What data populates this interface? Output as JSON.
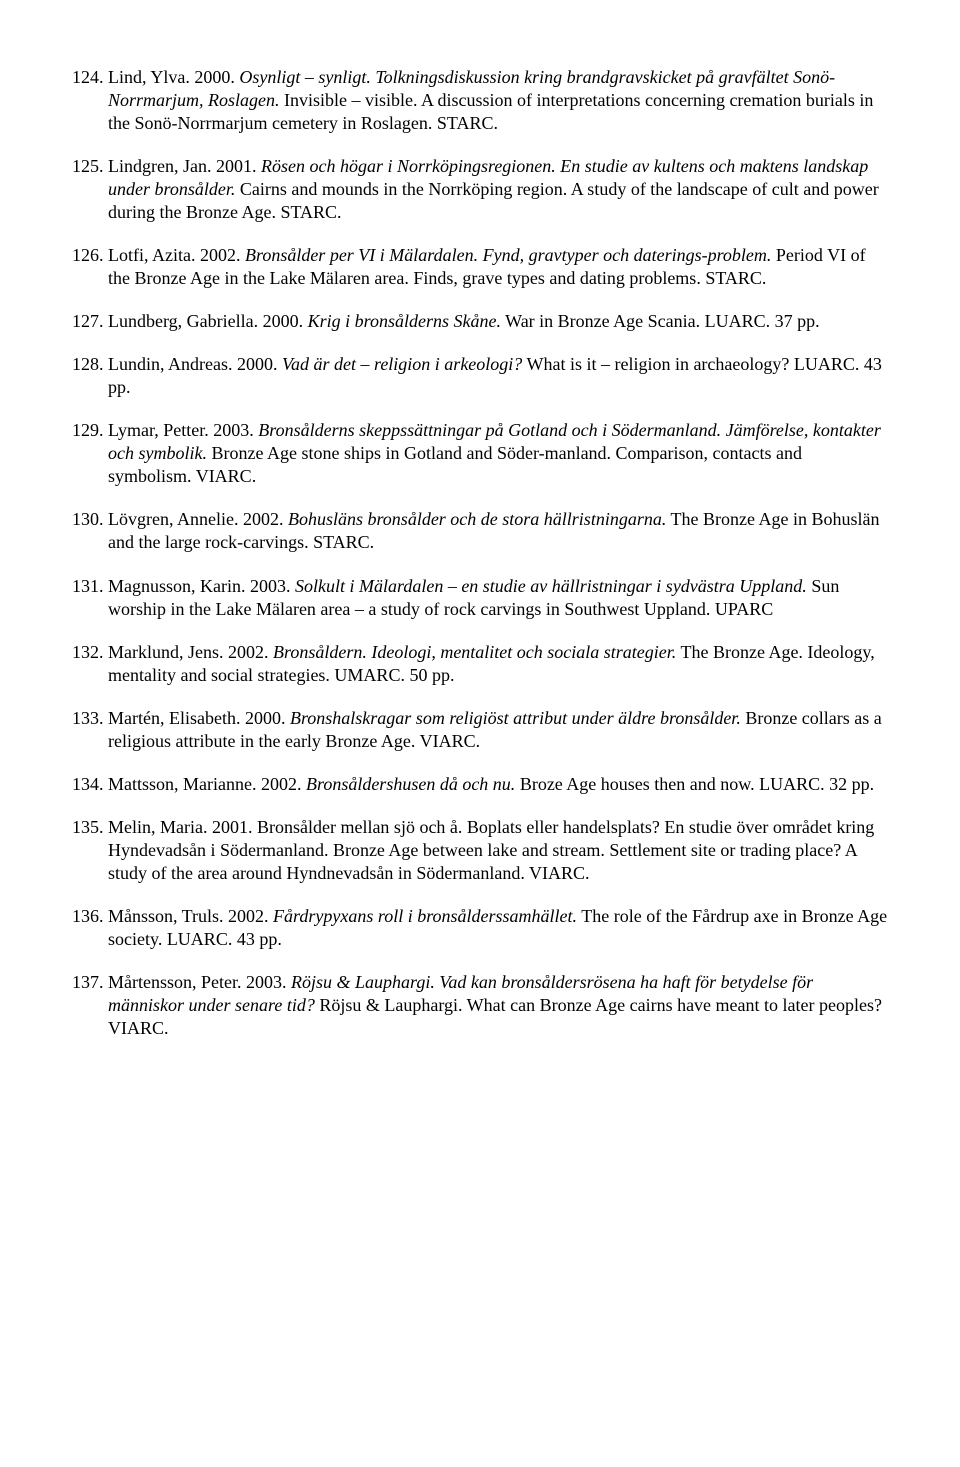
{
  "entries": [
    {
      "num": "124.",
      "segments": [
        {
          "t": " Lind, Ylva. 2000. ",
          "i": false
        },
        {
          "t": "Osynligt – synligt. Tolkningsdiskussion kring brandgravskicket på gravfältet Sonö-Norrmarjum, Roslagen.",
          "i": true
        },
        {
          "t": " Invisible – visible. A discussion of interpretations concerning cremation burials in the Sonö-Norrmarjum cemetery in Roslagen. STARC.",
          "i": false
        }
      ]
    },
    {
      "num": "125.",
      "segments": [
        {
          "t": " Lindgren, Jan. 2001. ",
          "i": false
        },
        {
          "t": "Rösen och högar i Norrköpingsregionen. En studie av kultens och maktens landskap under bronsålder.",
          "i": true
        },
        {
          "t": " Cairns and mounds in the Norrköping region. A study of the landscape of cult and power during the Bronze Age. STARC.",
          "i": false
        }
      ]
    },
    {
      "num": "126.",
      "segments": [
        {
          "t": " Lotfi, Azita. 2002. ",
          "i": false
        },
        {
          "t": "Bronsålder per VI i Mälardalen. Fynd, gravtyper och daterings-problem.",
          "i": true
        },
        {
          "t": " Period VI of the Bronze Age in the Lake Mälaren area. Finds, grave types and dating problems. STARC.",
          "i": false
        }
      ]
    },
    {
      "num": "127.",
      "segments": [
        {
          "t": " Lundberg, Gabriella. 2000. ",
          "i": false
        },
        {
          "t": "Krig i bronsålderns Skåne.",
          "i": true
        },
        {
          "t": " War in Bronze Age Scania. LUARC. 37 pp.",
          "i": false
        }
      ]
    },
    {
      "num": "128.",
      "segments": [
        {
          "t": " Lundin, Andreas. 2000. ",
          "i": false
        },
        {
          "t": "Vad är det – religion i arkeologi?",
          "i": true
        },
        {
          "t": " What is it – religion in archaeology? LUARC. 43 pp.",
          "i": false
        }
      ]
    },
    {
      "num": "129.",
      "segments": [
        {
          "t": " Lymar, Petter. 2003. ",
          "i": false
        },
        {
          "t": "Bronsålderns skeppssättningar på Gotland och i Södermanland. Jämförelse, kontakter och symbolik.",
          "i": true
        },
        {
          "t": " Bronze Age stone ships in Gotland and Söder-manland. Comparison, contacts and symbolism. VIARC.",
          "i": false
        }
      ]
    },
    {
      "num": "130.",
      "segments": [
        {
          "t": " Lövgren, Annelie. 2002. ",
          "i": false
        },
        {
          "t": "Bohusläns bronsålder och de stora hällristningarna.",
          "i": true
        },
        {
          "t": " The Bronze Age in Bohuslän and the large rock-carvings. STARC.",
          "i": false
        }
      ]
    },
    {
      "num": "131.",
      "segments": [
        {
          "t": " Magnusson, Karin. 2003. ",
          "i": false
        },
        {
          "t": "Solkult i Mälardalen – en studie av hällristningar i sydvästra Uppland.",
          "i": true
        },
        {
          "t": " Sun worship in the Lake Mälaren area – a study of rock carvings in Southwest Uppland. UPARC",
          "i": false
        }
      ]
    },
    {
      "num": "132.",
      "segments": [
        {
          "t": " Marklund, Jens. 2002. ",
          "i": false
        },
        {
          "t": "Bronsåldern. Ideologi, mentalitet och sociala strategier.",
          "i": true
        },
        {
          "t": " The Bronze Age. Ideology, mentality and social strategies. UMARC. 50 pp.",
          "i": false
        }
      ]
    },
    {
      "num": "133.",
      "segments": [
        {
          "t": " Martén, Elisabeth. 2000. ",
          "i": false
        },
        {
          "t": "Bronshalskragar som religiöst attribut under äldre bronsålder.",
          "i": true
        },
        {
          "t": " Bronze collars as a religious attribute in the early Bronze Age. VIARC.",
          "i": false
        }
      ]
    },
    {
      "num": "134.",
      "segments": [
        {
          "t": " Mattsson, Marianne. 2002. ",
          "i": false
        },
        {
          "t": "Bronsåldershusen då och nu.",
          "i": true
        },
        {
          "t": " Broze Age houses then and now. LUARC. 32 pp.",
          "i": false
        }
      ]
    },
    {
      "num": "135.",
      "segments": [
        {
          "t": " Melin, Maria. 2001. Bronsålder mellan sjö och å. Boplats eller handelsplats? En studie över området kring Hyndevadsån i Södermanland. Bronze Age between lake and stream. Settlement site or trading place? A study of the area around Hyndnevadsån in Södermanland. VIARC.",
          "i": false
        }
      ]
    },
    {
      "num": "136.",
      "segments": [
        {
          "t": " Månsson, Truls. 2002. ",
          "i": false
        },
        {
          "t": "Fårdrypyxans roll i bronsålderssamhället.",
          "i": true
        },
        {
          "t": " The role of the Fårdrup axe in Bronze Age society. LUARC. 43 pp.",
          "i": false
        }
      ]
    },
    {
      "num": "137.",
      "segments": [
        {
          "t": " Mårtensson, Peter. 2003. ",
          "i": false
        },
        {
          "t": "Röjsu & Lauphargi. Vad kan bronsåldersrösena ha haft för betydelse för människor under senare tid?",
          "i": true
        },
        {
          "t": " Röjsu & Lauphargi. What can Bronze Age cairns have meant to later peoples? VIARC.",
          "i": false
        }
      ]
    }
  ]
}
